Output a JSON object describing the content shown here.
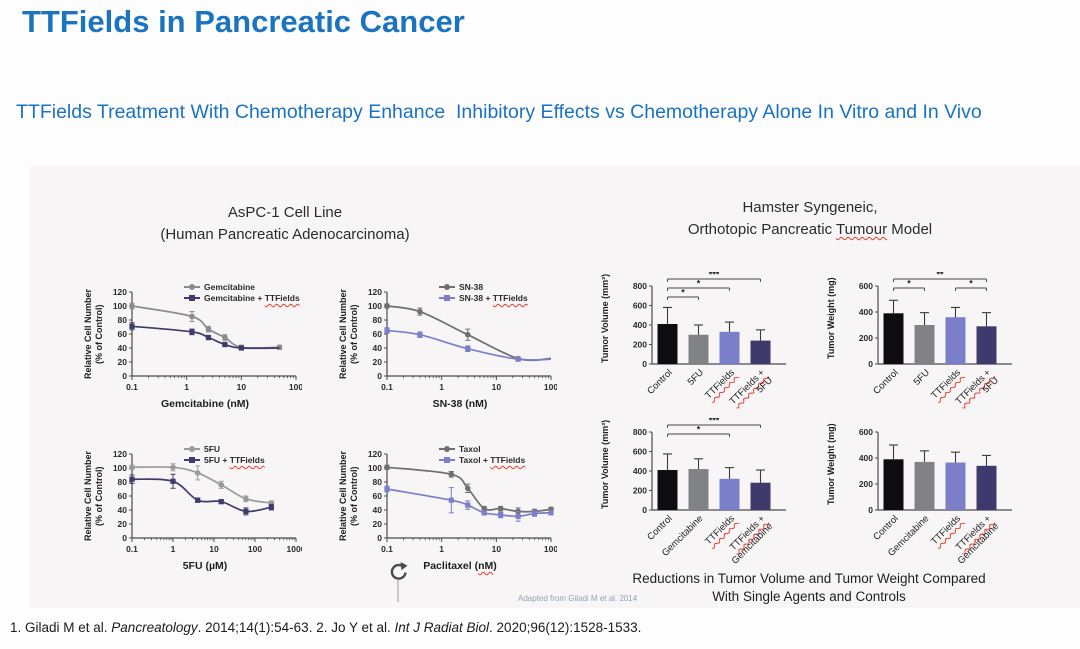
{
  "slide": {
    "title": "TTFields in Pancreatic Cancer",
    "subtitle": "TTFields Treatment With Chemotherapy Enhance  Inhibitory Effects vs Chemotherapy Alone In Vitro and In Vivo"
  },
  "left_panel": {
    "heading_line1": "AsPC-1 Cell Line",
    "heading_line2": "(Human Pancreatic Adenocarcinoma)"
  },
  "right_panel": {
    "heading_line1": "Hamster Syngeneic,",
    "heading_pre": "Orthotopic Pancreatic ",
    "heading_wavy": "Tumour",
    "heading_post": " Model",
    "caption_line1": "Reductions in Tumor Volume and Tumor Weight Compared",
    "caption_line2": "With Single Agents and Controls"
  },
  "annotations": {
    "adapted_note": "Adapted from Giladi M et al. 2014",
    "icon": "circular-arrow-icon"
  },
  "footer": {
    "ref1_pre": "1. Giladi M et al. ",
    "ref1_journal": "Pancreatology",
    "ref1_post": ". 2014;14(1):54-63. 2. Jo Y et al. ",
    "ref2_journal": "Int J Radiat Biol",
    "ref2_post": ". 2020;96(12):1528-1533."
  },
  "colors": {
    "accent_blue": "#1b74c0",
    "wavy_red": "#e23b2e",
    "series_gray": "#8c8c8c",
    "series_navy": "#3e3b6e",
    "series_periwinkle": "#7c7fc8",
    "bar_black": "#0d0d0f",
    "bar_gray": "#808285",
    "bar_periwinkle": "#7b7ec8",
    "bar_navy": "#3e3a6b",
    "axis": "#4b4b4b"
  },
  "chart_data": [
    {
      "id": "gemcitabine",
      "type": "line",
      "ylabel_lines": [
        "Relative Cell Number",
        "(% of Control)"
      ],
      "ylim": [
        0,
        120
      ],
      "yticks": [
        0,
        20,
        40,
        60,
        80,
        100,
        120
      ],
      "xlog": true,
      "xlim": [
        0.1,
        100
      ],
      "xticks": [
        0.1,
        1,
        10,
        100
      ],
      "xlabel": {
        "pre": "Gemcitabine (nM)",
        "wavy": "",
        "post": ""
      },
      "series": [
        {
          "name": "Gemcitabine",
          "marker": "circle",
          "color": "#8c8c8c",
          "label_pre": "Gemcitabine",
          "label_wavy": "",
          "x": [
            0.1,
            1.25,
            2.5,
            5,
            10,
            50
          ],
          "y": [
            100,
            85,
            67,
            55,
            41,
            41
          ],
          "err": [
            4,
            7,
            4,
            4,
            3,
            3
          ]
        },
        {
          "name": "Gemcitabine + TTFields",
          "marker": "square",
          "color": "#3e3b6e",
          "label_pre": "Gemcitabine + ",
          "label_wavy": "TTFields",
          "tail_x": 50,
          "x": [
            0.1,
            1.25,
            2.5,
            5,
            10
          ],
          "y": [
            71,
            63,
            55,
            45,
            40
          ],
          "err": [
            5,
            4,
            3,
            3,
            2
          ]
        }
      ]
    },
    {
      "id": "sn38",
      "type": "line",
      "ylabel_lines": [
        "Relative Cell Number",
        "(% of Control)"
      ],
      "ylim": [
        0,
        120
      ],
      "yticks": [
        0,
        20,
        40,
        60,
        80,
        100,
        120
      ],
      "xlog": true,
      "xlim": [
        0.1,
        100
      ],
      "xticks": [
        0.1,
        1,
        10,
        100
      ],
      "xlabel": {
        "pre": "SN-38 (nM)",
        "wavy": "",
        "post": ""
      },
      "series": [
        {
          "name": "SN-38",
          "marker": "circle",
          "color": "#6f6f6f",
          "label_pre": "SN-38",
          "label_wavy": "",
          "tail_x": 100,
          "x": [
            0.1,
            0.4,
            3,
            25
          ],
          "y": [
            100,
            92,
            59,
            25
          ],
          "err": [
            3,
            5,
            8,
            2
          ]
        },
        {
          "name": "SN-38 + TTFields",
          "marker": "square",
          "color": "#7c7fc8",
          "label_pre": "SN-38 + ",
          "label_wavy": "TTFields",
          "tail_x": 100,
          "x": [
            0.1,
            0.4,
            3,
            25
          ],
          "y": [
            65,
            59,
            39,
            24
          ],
          "err": [
            4,
            4,
            4,
            2
          ]
        }
      ]
    },
    {
      "id": "5fu",
      "type": "line",
      "ylabel_lines": [
        "Relative Cell Number",
        "(% of Control)"
      ],
      "ylim": [
        0,
        120
      ],
      "yticks": [
        0,
        20,
        40,
        60,
        80,
        100,
        120
      ],
      "xlog": true,
      "xlim": [
        0.1,
        1000
      ],
      "xticks": [
        0.1,
        1,
        10,
        100,
        1000
      ],
      "xlabel": {
        "pre": "5FU (µM)",
        "wavy": "",
        "post": ""
      },
      "series": [
        {
          "name": "5FU",
          "marker": "circle",
          "color": "#9a9a9a",
          "label_pre": "5FU",
          "label_wavy": "",
          "x": [
            0.1,
            1,
            4,
            15,
            60,
            250
          ],
          "y": [
            101,
            101,
            93,
            76,
            56,
            50
          ],
          "err": [
            3,
            5,
            10,
            5,
            4,
            3
          ]
        },
        {
          "name": "5FU + TTFields",
          "marker": "square",
          "color": "#3e3b6e",
          "label_pre": "5FU + ",
          "label_wavy": "TTFields",
          "x": [
            0.1,
            1,
            4,
            15,
            60,
            250
          ],
          "y": [
            84,
            81,
            54,
            52,
            38,
            44
          ],
          "err": [
            6,
            10,
            3,
            3,
            5,
            4
          ]
        }
      ]
    },
    {
      "id": "paclitaxel",
      "type": "line",
      "ylabel_lines": [
        "Relative Cell Number",
        "(% of Control)"
      ],
      "ylim": [
        0,
        120
      ],
      "yticks": [
        0,
        20,
        40,
        60,
        80,
        100,
        120
      ],
      "xlog": true,
      "xlim": [
        0.1,
        100
      ],
      "xticks": [
        0.1,
        1,
        10,
        100
      ],
      "xlabel": {
        "pre": "Paclitaxel (",
        "wavy": "nM",
        "post": ")"
      },
      "series": [
        {
          "name": "Taxol",
          "marker": "circle",
          "color": "#6f6f6f",
          "label_pre": "Taxol",
          "label_wavy": "",
          "x": [
            0.1,
            1.5,
            3,
            6,
            12,
            25,
            50,
            100
          ],
          "y": [
            101,
            91,
            71,
            42,
            42,
            38,
            38,
            41
          ],
          "err": [
            3,
            4,
            6,
            3,
            3,
            5,
            3,
            3
          ]
        },
        {
          "name": "Taxol + TTFields",
          "marker": "square",
          "color": "#7c7fc8",
          "label_pre": "Taxol + ",
          "label_wavy": "TTFields",
          "x": [
            0.1,
            1.5,
            3,
            6,
            12,
            25,
            50,
            100
          ],
          "y": [
            70,
            54,
            47,
            36,
            33,
            31,
            35,
            36
          ],
          "err": [
            4,
            18,
            6,
            3,
            4,
            7,
            4,
            3
          ]
        }
      ]
    },
    {
      "id": "tumor-volume-5fu",
      "type": "bar",
      "ylabel": "Tumor Volume (mm³)",
      "ylim": [
        0,
        800
      ],
      "yticks": [
        0,
        200,
        400,
        600,
        800
      ],
      "categories": [
        {
          "lines": [
            {
              "text": "Control",
              "wavy": false
            }
          ]
        },
        {
          "lines": [
            {
              "text": "5FU",
              "wavy": false
            }
          ]
        },
        {
          "lines": [
            {
              "text": "TTFields",
              "wavy": true
            }
          ]
        },
        {
          "lines": [
            {
              "text": "TTFields +",
              "wavy": true
            },
            {
              "text": "5FU",
              "wavy": false
            }
          ]
        }
      ],
      "values": [
        410,
        300,
        330,
        240
      ],
      "errors": [
        170,
        100,
        100,
        110
      ],
      "colors": [
        "#0d0d0f",
        "#808285",
        "#7b7ec8",
        "#3e3a6b"
      ],
      "sig": [
        {
          "from": 0,
          "to": 3,
          "label": "***",
          "level": 0
        },
        {
          "from": 0,
          "to": 2,
          "label": "*",
          "level": 1
        },
        {
          "from": 0,
          "to": 1,
          "label": "*",
          "level": 2
        }
      ]
    },
    {
      "id": "tumor-weight-5fu",
      "type": "bar",
      "ylabel": "Tumor Weight (mg)",
      "ylim": [
        0,
        600
      ],
      "yticks": [
        0,
        200,
        400,
        600
      ],
      "categories": [
        {
          "lines": [
            {
              "text": "Control",
              "wavy": false
            }
          ]
        },
        {
          "lines": [
            {
              "text": "5FU",
              "wavy": false
            }
          ]
        },
        {
          "lines": [
            {
              "text": "TTFields",
              "wavy": true
            }
          ]
        },
        {
          "lines": [
            {
              "text": "TTFields +",
              "wavy": true
            },
            {
              "text": "5FU",
              "wavy": false
            }
          ]
        }
      ],
      "values": [
        390,
        300,
        360,
        290
      ],
      "errors": [
        100,
        95,
        75,
        105
      ],
      "colors": [
        "#0d0d0f",
        "#808285",
        "#7b7ec8",
        "#3e3a6b"
      ],
      "sig": [
        {
          "from": 0,
          "to": 3,
          "label": "**",
          "level": 0
        },
        {
          "from": 0,
          "to": 1,
          "label": "*",
          "level": 1
        },
        {
          "from": 2,
          "to": 3,
          "label": "*",
          "level": 1
        }
      ]
    },
    {
      "id": "tumor-volume-gemcitabine",
      "type": "bar",
      "ylabel": "Tumor Volume (mm³)",
      "ylim": [
        0,
        800
      ],
      "yticks": [
        0,
        200,
        400,
        600,
        800
      ],
      "categories": [
        {
          "lines": [
            {
              "text": "Control",
              "wavy": false
            }
          ]
        },
        {
          "lines": [
            {
              "text": "Gemcitabine",
              "wavy": false
            }
          ]
        },
        {
          "lines": [
            {
              "text": "TTFields",
              "wavy": true
            }
          ]
        },
        {
          "lines": [
            {
              "text": "TTFields +",
              "wavy": true
            },
            {
              "text": "Gemcitabine",
              "wavy": false
            }
          ]
        }
      ],
      "values": [
        410,
        420,
        320,
        280
      ],
      "errors": [
        165,
        105,
        115,
        130
      ],
      "colors": [
        "#0d0d0f",
        "#808285",
        "#7b7ec8",
        "#3e3a6b"
      ],
      "sig": [
        {
          "from": 0,
          "to": 3,
          "label": "***",
          "level": 0
        },
        {
          "from": 0,
          "to": 2,
          "label": "*",
          "level": 1
        }
      ]
    },
    {
      "id": "tumor-weight-gemcitabine",
      "type": "bar",
      "ylabel": "Tumor Weight (mg)",
      "ylim": [
        0,
        600
      ],
      "yticks": [
        0,
        200,
        400,
        600
      ],
      "categories": [
        {
          "lines": [
            {
              "text": "Control",
              "wavy": false
            }
          ]
        },
        {
          "lines": [
            {
              "text": "Gemcitabine",
              "wavy": false
            }
          ]
        },
        {
          "lines": [
            {
              "text": "TTFields",
              "wavy": true
            }
          ]
        },
        {
          "lines": [
            {
              "text": "TTFields +",
              "wavy": true
            },
            {
              "text": "Gemcitabine",
              "wavy": false
            }
          ]
        }
      ],
      "values": [
        390,
        370,
        365,
        340
      ],
      "errors": [
        110,
        85,
        80,
        80
      ],
      "colors": [
        "#0d0d0f",
        "#808285",
        "#7b7ec8",
        "#3e3a6b"
      ],
      "sig": []
    }
  ]
}
